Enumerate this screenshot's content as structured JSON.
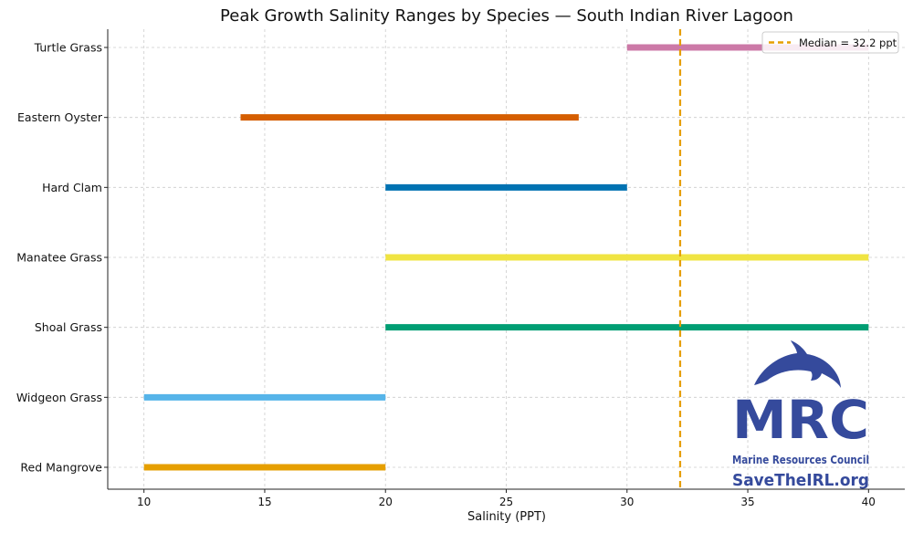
{
  "chart_data": {
    "type": "range-bar",
    "title": "Peak Growth Salinity Ranges by Species — South Indian River Lagoon",
    "xlabel": "Salinity (PPT)",
    "ylabel": "",
    "xlim": [
      8.5,
      41.5
    ],
    "xticks": [
      10,
      15,
      20,
      25,
      30,
      35,
      40
    ],
    "grid": true,
    "legend_position": "top-right",
    "categories": [
      "Turtle Grass",
      "Eastern Oyster",
      "Hard Clam",
      "Manatee Grass",
      "Shoal Grass",
      "Widgeon Grass",
      "Red Mangrove"
    ],
    "ranges": [
      {
        "species": "Turtle Grass",
        "min": 30,
        "max": 40,
        "color": "#cc79a7"
      },
      {
        "species": "Eastern Oyster",
        "min": 14,
        "max": 28,
        "color": "#d55e00"
      },
      {
        "species": "Hard Clam",
        "min": 20,
        "max": 30,
        "color": "#0072b2"
      },
      {
        "species": "Manatee Grass",
        "min": 20,
        "max": 40,
        "color": "#f0e442"
      },
      {
        "species": "Shoal Grass",
        "min": 20,
        "max": 40,
        "color": "#009e73"
      },
      {
        "species": "Widgeon Grass",
        "min": 10,
        "max": 20,
        "color": "#56b4e9"
      },
      {
        "species": "Red Mangrove",
        "min": 10,
        "max": 20,
        "color": "#e69f00"
      }
    ],
    "median": {
      "value": 32.2,
      "label": "Median = 32.2 ppt",
      "color": "#e69f00"
    }
  },
  "logo": {
    "icon": "dolphin-icon",
    "acronym": "MRC",
    "name": "Marine Resources Council",
    "url": "SaveTheIRL.org",
    "color": "#354a9c"
  }
}
